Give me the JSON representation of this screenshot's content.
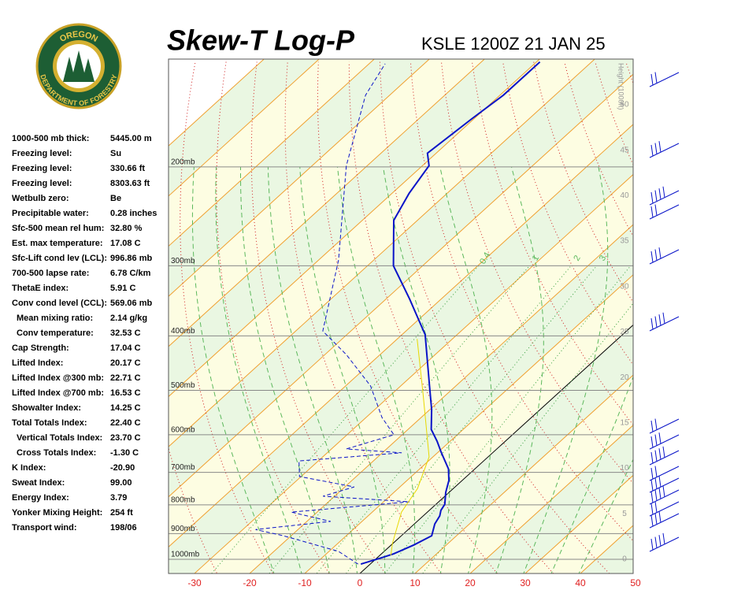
{
  "header": {
    "title": "Skew-T Log-P",
    "station": "KSLE 1200Z 21 JAN 25"
  },
  "logo": {
    "top": "OREGON",
    "bottom": "DEPARTMENT OF FORESTRY"
  },
  "indices": [
    {
      "label": "1000-500 mb thick:",
      "value": "5445.00 m"
    },
    {
      "label": "Freezing level:",
      "value": "Su"
    },
    {
      "label": "Freezing level:",
      "value": "330.66 ft"
    },
    {
      "label": "Freezing level:",
      "value": "8303.63 ft"
    },
    {
      "label": "Wetbulb zero:",
      "value": "Be"
    },
    {
      "label": "Precipitable water:",
      "value": "0.28 inches"
    },
    {
      "label": "Sfc-500 mean rel hum:",
      "value": "32.80 %"
    },
    {
      "label": "Est. max temperature:",
      "value": "17.08 C"
    },
    {
      "label": "Sfc-Lift cond lev (LCL):",
      "value": "996.86 mb"
    },
    {
      "label": "700-500 lapse rate:",
      "value": "6.78 C/km"
    },
    {
      "label": "ThetaE index:",
      "value": "5.91 C"
    },
    {
      "label": "Conv cond level (CCL):",
      "value": "569.06 mb"
    },
    {
      "label": "Mean mixing ratio:",
      "value": "2.14 g/kg"
    },
    {
      "label": "Conv temperature:",
      "value": "32.53 C"
    },
    {
      "label": "Cap Strength:",
      "value": "17.04 C"
    },
    {
      "label": "Lifted Index:",
      "value": "20.17 C"
    },
    {
      "label": "Lifted Index @300 mb:",
      "value": "22.71 C"
    },
    {
      "label": "Lifted Index @700 mb:",
      "value": "16.53 C"
    },
    {
      "label": "Showalter Index:",
      "value": "14.25 C"
    },
    {
      "label": "Total Totals Index:",
      "value": "22.40 C"
    },
    {
      "label": "Vertical Totals Index:",
      "value": "23.70 C"
    },
    {
      "label": "Cross Totals Index:",
      "value": "-1.30 C"
    },
    {
      "label": "K Index:",
      "value": "-20.90"
    },
    {
      "label": "Sweat Index:",
      "value": "99.00"
    },
    {
      "label": "Energy Index:",
      "value": "3.79"
    },
    {
      "label": "Yonker Mixing Height:",
      "value": "254 ft"
    },
    {
      "label": "Transport wind:",
      "value": "198/06"
    }
  ],
  "chart_data": {
    "type": "skewt",
    "xticks": [
      -30,
      -20,
      -10,
      0,
      10,
      20,
      30,
      40,
      50
    ],
    "pressure_ticks": [
      {
        "value": 1000,
        "label": "1000mb"
      },
      {
        "value": 900,
        "label": "900mb"
      },
      {
        "value": 800,
        "label": "800mb"
      },
      {
        "value": 700,
        "label": "700mb"
      },
      {
        "value": 600,
        "label": "600mb"
      },
      {
        "value": 500,
        "label": "500mb"
      },
      {
        "value": 400,
        "label": "400mb"
      },
      {
        "value": 300,
        "label": "300mb"
      },
      {
        "value": 200,
        "label": "200mb"
      }
    ],
    "height_label": "Height (1000ft)",
    "height_ticks": [
      0,
      5,
      10,
      15,
      20,
      25,
      30,
      35,
      40,
      45,
      50
    ],
    "mixing_ratio_ticks": [
      0.4,
      1,
      2,
      3,
      5,
      8
    ],
    "series": [
      {
        "color": "#0a14c8",
        "style": "solid",
        "pressure": [
          1020,
          994,
          978,
          943,
          908,
          865,
          837,
          818,
          798,
          760,
          724,
          690,
          646,
          616,
          587,
          541,
          491,
          398,
          344,
          300,
          249,
          223,
          199,
          189,
          164,
          149,
          130
        ],
        "values": [
          -1.7,
          0.8,
          2.2,
          4.1,
          5.5,
          3.7,
          3.0,
          2.1,
          1.6,
          -0.6,
          -2.4,
          -4.8,
          -9.3,
          -12.4,
          -15.8,
          -19.7,
          -24.8,
          -35.8,
          -45.7,
          -55.3,
          -64.3,
          -66.9,
          -68.8,
          -71.6,
          -70.4,
          -69.4,
          -69.4
        ]
      },
      {
        "color": "#0a14c8",
        "style": "dashed",
        "pressure": [
          1020,
          968,
          908,
          885,
          856,
          824,
          790,
          772,
          743,
          712,
          668,
          646,
          636,
          600,
          559,
          491,
          432,
          392,
          293,
          199,
          149,
          131
        ],
        "values": [
          -2.2,
          -8.3,
          -21.4,
          -27.7,
          -15.7,
          -24.7,
          -5.3,
          -22.1,
          -18.3,
          -30.3,
          -33.5,
          -16.5,
          -27.3,
          -21.5,
          -27.1,
          -35.5,
          -46.1,
          -55.1,
          -66.4,
          -83.8,
          -94.4,
          -97.1
        ]
      },
      {
        "color": "#e8d800",
        "style": "solid",
        "pressure": [
          984,
          937,
          824,
          748,
          657,
          507,
          405
        ],
        "values": [
          2.0,
          -0.1,
          -4.7,
          -6.5,
          -10.7,
          -24.4,
          -36.4
        ]
      }
    ]
  }
}
